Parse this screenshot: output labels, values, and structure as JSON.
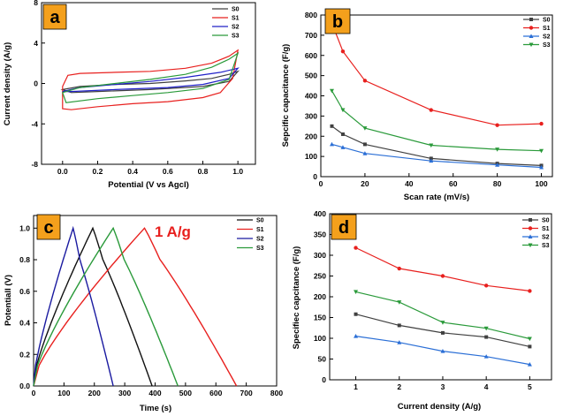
{
  "chart_data": [
    {
      "panel": "a",
      "type": "line",
      "title": "",
      "xlabel": "Potential (V vs Agcl)",
      "ylabel": "Current density (A/g)",
      "xlim": [
        -0.12,
        1.1
      ],
      "ylim": [
        -8,
        8
      ],
      "xticks": [
        0.0,
        0.2,
        0.4,
        0.6,
        0.8,
        1.0
      ],
      "xtick_labels": [
        "0.0",
        "0.2",
        "0.4",
        "0.6",
        "0.8",
        "1.0"
      ],
      "yticks": [
        -8,
        -4,
        0,
        4,
        8
      ],
      "ytick_labels": [
        "-8",
        "-4",
        "0",
        "4",
        "8"
      ],
      "legend": [
        "S0",
        "S1",
        "S2",
        "S3"
      ],
      "series": [
        {
          "name": "S0",
          "color": "#404040",
          "upper": [
            [
              0.0,
              -0.6
            ],
            [
              0.1,
              -0.3
            ],
            [
              0.3,
              -0.1
            ],
            [
              0.5,
              0.0
            ],
            [
              0.7,
              0.25
            ],
            [
              0.85,
              0.5
            ],
            [
              0.95,
              0.9
            ],
            [
              1.0,
              1.2
            ]
          ],
          "lower": [
            [
              0.0,
              -0.6
            ],
            [
              0.05,
              -0.9
            ],
            [
              0.2,
              -0.8
            ],
            [
              0.5,
              -0.6
            ],
            [
              0.8,
              -0.3
            ],
            [
              0.95,
              0.2
            ],
            [
              1.0,
              1.2
            ]
          ]
        },
        {
          "name": "S1",
          "color": "#e8201e",
          "upper": [
            [
              0.0,
              -0.3
            ],
            [
              0.03,
              0.8
            ],
            [
              0.1,
              1.0
            ],
            [
              0.3,
              1.1
            ],
            [
              0.5,
              1.2
            ],
            [
              0.7,
              1.5
            ],
            [
              0.85,
              2.0
            ],
            [
              0.95,
              2.7
            ],
            [
              1.0,
              3.3
            ]
          ],
          "lower": [
            [
              0.0,
              -0.3
            ],
            [
              0.0,
              -2.5
            ],
            [
              0.05,
              -2.6
            ],
            [
              0.2,
              -2.3
            ],
            [
              0.4,
              -2.0
            ],
            [
              0.6,
              -1.8
            ],
            [
              0.8,
              -1.4
            ],
            [
              0.9,
              -0.9
            ],
            [
              0.97,
              0.5
            ],
            [
              1.0,
              3.3
            ]
          ]
        },
        {
          "name": "S2",
          "color": "#2020c8",
          "upper": [
            [
              0.0,
              -0.8
            ],
            [
              0.1,
              -0.4
            ],
            [
              0.3,
              -0.1
            ],
            [
              0.5,
              0.2
            ],
            [
              0.7,
              0.6
            ],
            [
              0.9,
              1.1
            ],
            [
              1.0,
              1.5
            ]
          ],
          "lower": [
            [
              0.0,
              -0.8
            ],
            [
              0.05,
              -0.8
            ],
            [
              0.3,
              -0.6
            ],
            [
              0.6,
              -0.4
            ],
            [
              0.8,
              -0.1
            ],
            [
              0.95,
              0.5
            ],
            [
              1.0,
              1.5
            ]
          ]
        },
        {
          "name": "S3",
          "color": "#2a9a3a",
          "upper": [
            [
              0.0,
              -0.9
            ],
            [
              0.1,
              -0.4
            ],
            [
              0.3,
              0.0
            ],
            [
              0.5,
              0.4
            ],
            [
              0.7,
              0.9
            ],
            [
              0.85,
              1.6
            ],
            [
              0.95,
              2.4
            ],
            [
              1.0,
              3.0
            ]
          ],
          "lower": [
            [
              0.0,
              -0.9
            ],
            [
              0.02,
              -1.9
            ],
            [
              0.2,
              -1.5
            ],
            [
              0.4,
              -1.2
            ],
            [
              0.6,
              -0.9
            ],
            [
              0.8,
              -0.5
            ],
            [
              0.95,
              0.4
            ],
            [
              1.0,
              3.0
            ]
          ]
        }
      ]
    },
    {
      "panel": "b",
      "type": "line",
      "title": "",
      "xlabel": "Scan rate (mV/s)",
      "ylabel": "Sepcific capacitance (F/g)",
      "xlim": [
        0,
        105
      ],
      "ylim": [
        0,
        800
      ],
      "xticks": [
        0,
        20,
        40,
        60,
        80,
        100
      ],
      "yticks": [
        0,
        100,
        200,
        300,
        400,
        500,
        600,
        700,
        800
      ],
      "x": [
        5,
        10,
        20,
        50,
        80,
        100
      ],
      "legend": [
        "S0",
        "S1",
        "S2",
        "S3"
      ],
      "series": [
        {
          "name": "S0",
          "color": "#404040",
          "marker": "square",
          "values": [
            250,
            210,
            160,
            90,
            65,
            55
          ]
        },
        {
          "name": "S1",
          "color": "#e8201e",
          "marker": "circle",
          "values": [
            760,
            620,
            475,
            330,
            255,
            262
          ]
        },
        {
          "name": "S2",
          "color": "#2b6fd6",
          "marker": "triangle",
          "values": [
            160,
            145,
            115,
            78,
            58,
            46
          ]
        },
        {
          "name": "S3",
          "color": "#2a9a3a",
          "marker": "down-triangle",
          "values": [
            425,
            330,
            240,
            155,
            135,
            128
          ]
        }
      ]
    },
    {
      "panel": "c",
      "type": "line",
      "title": "",
      "annotation": "1 A/g",
      "xlabel": "Time (s)",
      "ylabel": "Potentiall (V)",
      "xlim": [
        0,
        800
      ],
      "ylim": [
        0,
        1.08
      ],
      "xticks": [
        0,
        100,
        200,
        300,
        400,
        500,
        600,
        700,
        800
      ],
      "yticks": [
        0.0,
        0.2,
        0.4,
        0.6,
        0.8,
        1.0
      ],
      "ytick_labels": [
        "0.0",
        "0.2",
        "0.4",
        "0.6",
        "0.8",
        "1.0"
      ],
      "legend": [
        "S0",
        "S1",
        "S2",
        "S3"
      ],
      "series": [
        {
          "name": "S0",
          "color": "#111111",
          "peak_time": 195,
          "end_time": 390
        },
        {
          "name": "S1",
          "color": "#e8201e",
          "peak_time": 365,
          "end_time": 668
        },
        {
          "name": "S2",
          "color": "#1a1aa0",
          "peak_time": 130,
          "end_time": 262
        },
        {
          "name": "S3",
          "color": "#2a9a3a",
          "peak_time": 262,
          "end_time": 475
        }
      ]
    },
    {
      "panel": "d",
      "type": "line",
      "title": "",
      "xlabel": "Current density (A/g)",
      "ylabel": "Specifiec capcitance (F/g)",
      "xlim": [
        0.4,
        5.5
      ],
      "ylim": [
        0,
        400
      ],
      "xticks": [
        1,
        2,
        3,
        4,
        5
      ],
      "yticks": [
        0,
        50,
        100,
        150,
        200,
        250,
        300,
        350,
        400
      ],
      "x": [
        1,
        2,
        3,
        4,
        5
      ],
      "legend": [
        "S0",
        "S1",
        "S2",
        "S3"
      ],
      "series": [
        {
          "name": "S0",
          "color": "#404040",
          "marker": "square",
          "values": [
            158,
            131,
            113,
            103,
            80
          ]
        },
        {
          "name": "S1",
          "color": "#e8201e",
          "marker": "circle",
          "values": [
            318,
            268,
            250,
            227,
            214
          ]
        },
        {
          "name": "S2",
          "color": "#2b6fd6",
          "marker": "triangle",
          "values": [
            105,
            90,
            69,
            56,
            37
          ]
        },
        {
          "name": "S3",
          "color": "#2a9a3a",
          "marker": "down-triangle",
          "values": [
            212,
            187,
            138,
            124,
            99
          ]
        }
      ]
    }
  ],
  "badge_color": "#f4a01c"
}
